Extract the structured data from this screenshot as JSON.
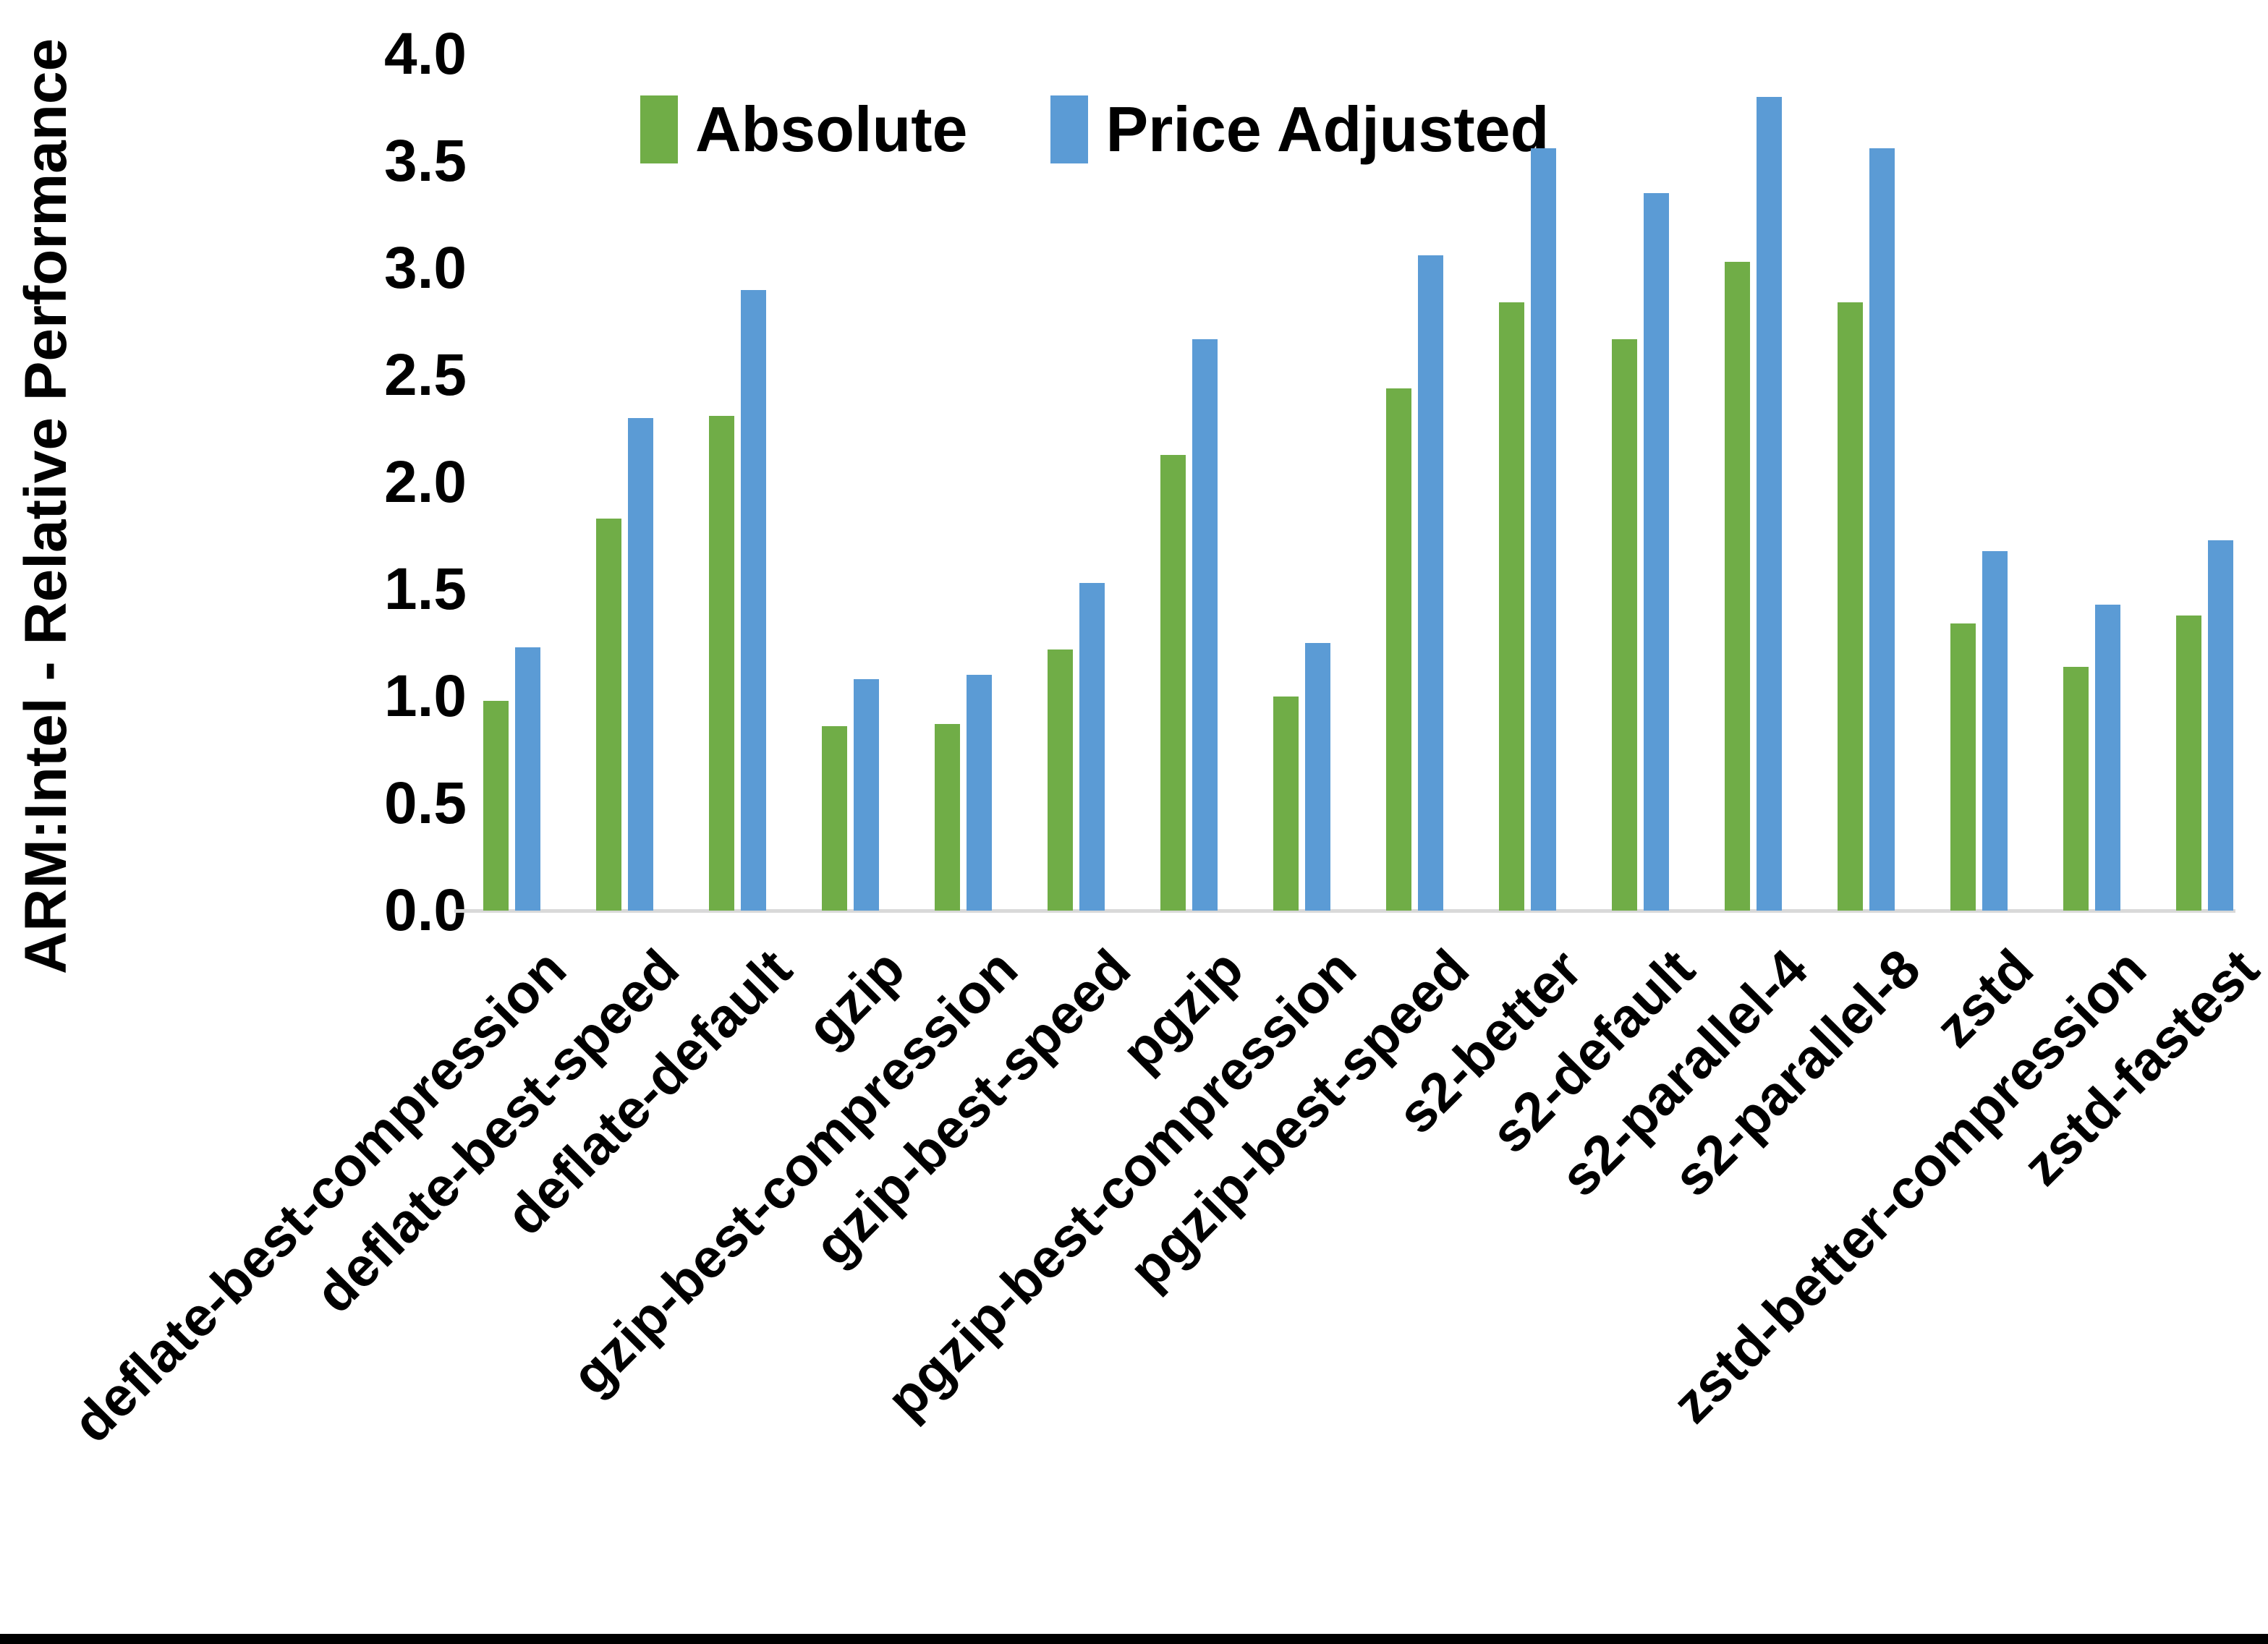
{
  "figure": {
    "y_axis_title": "ARM:Intel - Relative Performance"
  },
  "chart_data": {
    "type": "bar",
    "title": "",
    "xlabel": "",
    "ylabel": "ARM:Intel - Relative Performance",
    "ylim": [
      0.0,
      4.0
    ],
    "ytick_step": 0.5,
    "ytick_labels": [
      "0.0",
      "0.5",
      "1.0",
      "1.5",
      "2.0",
      "2.5",
      "3.0",
      "3.5",
      "4.0"
    ],
    "grid": false,
    "legend_position": "top-center",
    "x_label_rotation_deg": 45,
    "categories": [
      "deflate-best-compression",
      "deflate-best-speed",
      "deflate-default",
      "gzip",
      "gzip-best-compression",
      "gzip-best-speed",
      "pgzip",
      "pgzip-best-compression",
      "pgzip-best-speed",
      "s2-better",
      "s2-default",
      "s2-parallel-4",
      "s2-parallel-8",
      "zstd",
      "zstd-better-compression",
      "zstd-fastest"
    ],
    "series": [
      {
        "name": "Absolute",
        "color": "#70AD47",
        "values": [
          0.98,
          1.83,
          2.31,
          0.86,
          0.87,
          1.22,
          2.13,
          1.0,
          2.44,
          2.84,
          2.67,
          3.03,
          2.84,
          1.34,
          1.14,
          1.38
        ]
      },
      {
        "name": "Price Adjusted",
        "color": "#5B9BD5",
        "values": [
          1.23,
          2.3,
          2.9,
          1.08,
          1.1,
          1.53,
          2.67,
          1.25,
          3.06,
          3.56,
          3.35,
          3.8,
          3.56,
          1.68,
          1.43,
          1.73
        ]
      }
    ]
  }
}
